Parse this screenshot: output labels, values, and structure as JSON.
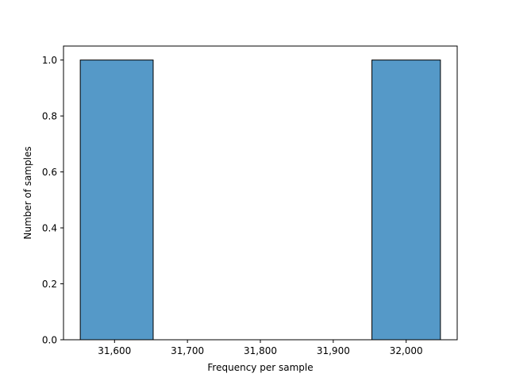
{
  "chart_data": {
    "type": "bar",
    "title": "",
    "xlabel": "Frequency per sample",
    "ylabel": "Number of samples",
    "xlim": [
      31530,
      32070
    ],
    "ylim": [
      0,
      1.05
    ],
    "bins": [
      {
        "x0": 31553,
        "x1": 31653,
        "value": 1.0
      },
      {
        "x0": 31653,
        "x1": 31753,
        "value": 0.0
      },
      {
        "x0": 31753,
        "x1": 31853,
        "value": 0.0
      },
      {
        "x0": 31853,
        "x1": 31953,
        "value": 0.0
      },
      {
        "x0": 31953,
        "x1": 32047,
        "value": 1.0
      }
    ],
    "x_ticks": [
      {
        "value": 31600,
        "label": "31,600"
      },
      {
        "value": 31700,
        "label": "31,700"
      },
      {
        "value": 31800,
        "label": "31,800"
      },
      {
        "value": 31900,
        "label": "31,900"
      },
      {
        "value": 32000,
        "label": "32,000"
      }
    ],
    "y_ticks": [
      {
        "value": 0.0,
        "label": "0.0"
      },
      {
        "value": 0.2,
        "label": "0.2"
      },
      {
        "value": 0.4,
        "label": "0.4"
      },
      {
        "value": 0.6,
        "label": "0.6"
      },
      {
        "value": 0.8,
        "label": "0.8"
      },
      {
        "value": 1.0,
        "label": "1.0"
      }
    ],
    "grid": false,
    "colors": {
      "bar_fill": "#5599c8",
      "bar_edge": "#000000",
      "axis": "#000000"
    }
  }
}
